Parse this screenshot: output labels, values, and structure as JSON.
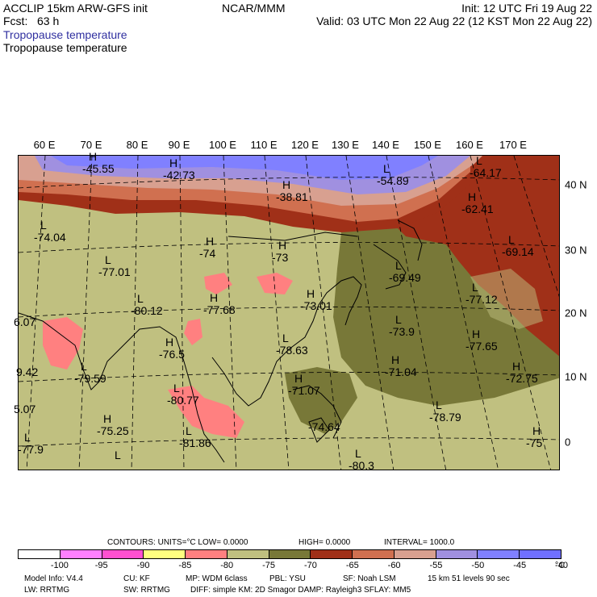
{
  "header": {
    "left1": "ACCLIP 15km ARW-GFS init",
    "left2": "Fcst:   63 h",
    "left3": "Tropopause temperature",
    "left4": "Tropopause temperature",
    "center": "NCAR/MMM",
    "init": "Init: 12 UTC Fri 19 Aug 22",
    "valid": "Valid: 03 UTC Mon 22 Aug 22 (12 KST Mon 22 Aug 22)"
  },
  "map": {
    "lon_labels": [
      "60 E",
      "70 E",
      "80 E",
      "90 E",
      "100 E",
      "110 E",
      "120 E",
      "130 E",
      "140 E",
      "150 E",
      "160 E",
      "170 E"
    ],
    "lat_labels": [
      "40 N",
      "30 N",
      "20 N",
      "10 N",
      "0"
    ],
    "field_labels": [
      {
        "letter": "H",
        "value": "-45.55"
      },
      {
        "letter": "H",
        "value": "-42.73"
      },
      {
        "letter": "H",
        "value": "-38.81"
      },
      {
        "letter": "L",
        "value": "-54.89"
      },
      {
        "letter": "L",
        "value": "-64.17"
      },
      {
        "letter": "H",
        "value": "-62.41"
      },
      {
        "letter": "L",
        "value": "-74.04"
      },
      {
        "letter": "H",
        "value": "-74"
      },
      {
        "letter": "H",
        "value": "-73"
      },
      {
        "letter": "L",
        "value": "-69.49"
      },
      {
        "letter": "L",
        "value": "-69.14"
      },
      {
        "letter": "L",
        "value": "-77.01"
      },
      {
        "letter": "H",
        "value": "-77.68"
      },
      {
        "letter": "H",
        "value": "-73.01"
      },
      {
        "letter": "L",
        "value": "-77.12"
      },
      {
        "letter": "L",
        "value": "-80.12"
      },
      {
        "letter": "L",
        "value": "-73.9"
      },
      {
        "letter": "H",
        "value": "-77.65"
      },
      {
        "letter": "",
        "value": "6.07"
      },
      {
        "letter": "H",
        "value": "-76.5"
      },
      {
        "letter": "L",
        "value": "-78.63"
      },
      {
        "letter": "H",
        "value": "-71.04"
      },
      {
        "letter": "",
        "value": "9.42"
      },
      {
        "letter": "L",
        "value": "-79.59"
      },
      {
        "letter": "H",
        "value": "-71.07"
      },
      {
        "letter": "H",
        "value": "-72.75"
      },
      {
        "letter": "L",
        "value": "-80.77"
      },
      {
        "letter": "L",
        "value": "-78.79"
      },
      {
        "letter": "",
        "value": "5.07"
      },
      {
        "letter": "H",
        "value": "-75.25"
      },
      {
        "letter": "",
        "value": "-74.64"
      },
      {
        "letter": "H",
        "value": "-75"
      },
      {
        "letter": "L",
        "value": "-81.86"
      },
      {
        "letter": "L",
        "value": "-77.9"
      },
      {
        "letter": "L",
        "value": "-80.3"
      },
      {
        "letter": "L",
        "value": ""
      }
    ]
  },
  "contour_info": {
    "contours": "CONTOURS:  UNITS=°C   LOW=   0.0000",
    "high": "HIGH=   0.0000",
    "interval": "INTERVAL=     1000.0"
  },
  "colorbar": {
    "colors": [
      "#ffffff",
      "#ff80ff",
      "#ff50d0",
      "#ffff80",
      "#ff8080",
      "#c0c080",
      "#787838",
      "#a03018",
      "#d07050",
      "#d8a090",
      "#a090e0",
      "#8080ff",
      "#7070ff"
    ],
    "labels": [
      "-100",
      "-95",
      "-90",
      "-85",
      "-80",
      "-75",
      "-70",
      "-65",
      "-60",
      "-55",
      "-50",
      "-45",
      "-40"
    ],
    "unit": "°C"
  },
  "footer": {
    "l1a": "Model Info: V4.4",
    "l1b": "CU: KF",
    "l1c": "MP: WDM 6class",
    "l1d": "PBL: YSU",
    "l1e": "SF: Noah LSM",
    "l1f": "15 km    51 levels    90 sec",
    "l2a": "LW: RRTMG",
    "l2b": "SW: RRTMG",
    "l2c": "DIFF: simple KM: 2D Smagor DAMP: Rayleigh3  SFLAY: MM5"
  }
}
